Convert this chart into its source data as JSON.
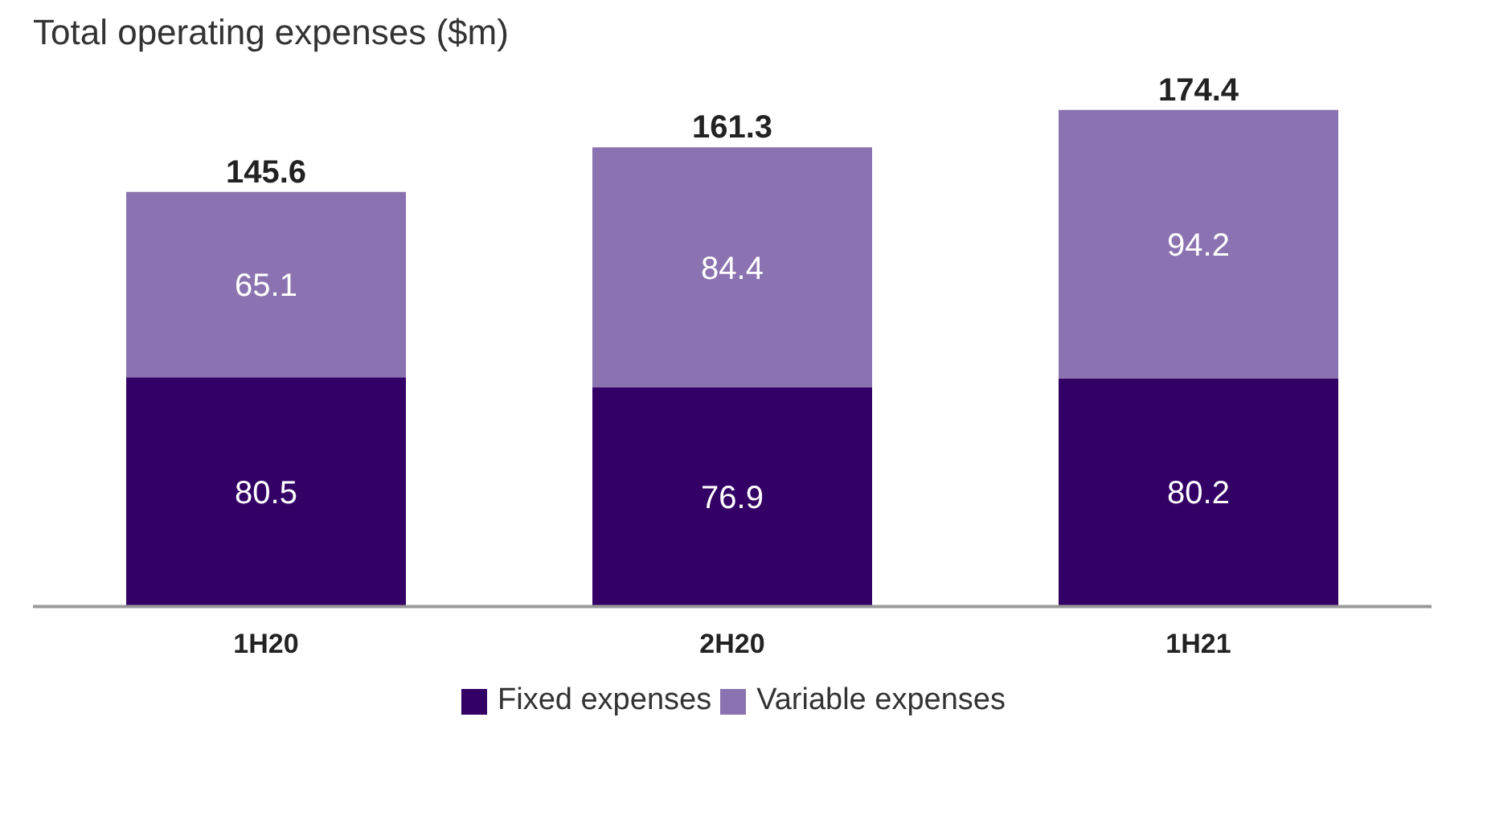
{
  "chart_data": {
    "type": "bar",
    "title": "Total operating expenses ($m)",
    "categories": [
      "1H20",
      "2H20",
      "1H21"
    ],
    "stacked": true,
    "data_labels": true,
    "tick_labels": "x",
    "grid": false,
    "legend": "bottom",
    "series": [
      {
        "name": "Fixed expenses",
        "color": "#330066",
        "values": [
          80.5,
          76.9,
          80.2
        ]
      },
      {
        "name": "Variable expenses",
        "color": "#8b72b0",
        "values": [
          65.1,
          84.4,
          94.2
        ]
      }
    ],
    "totals": [
      "145.6",
      "161.3",
      "174.4"
    ]
  }
}
